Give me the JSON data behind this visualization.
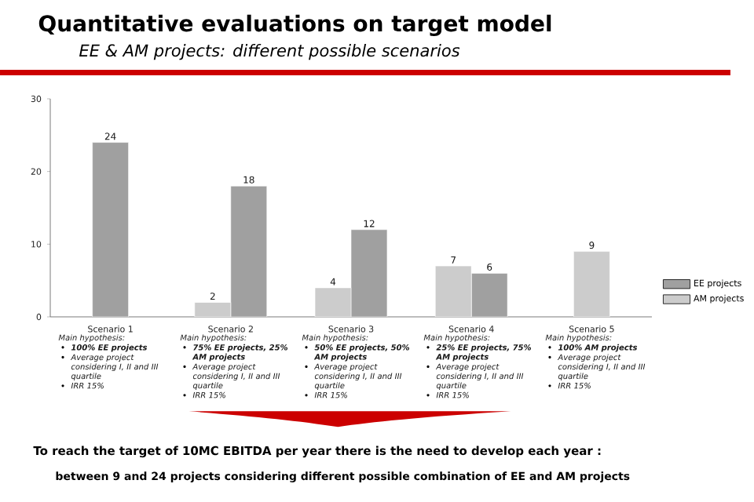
{
  "chart_data": {
    "type": "bar",
    "title": "Quantitative evaluations on target model",
    "subtitle": "EE & AM projects: different possible scenarios",
    "categories": [
      "Scenario 1",
      "Scenario 2",
      "Scenario 3",
      "Scenario 4",
      "Scenario 5"
    ],
    "series": [
      {
        "name": "EE projects",
        "color": "#a0a0a0",
        "values": [
          24,
          18,
          12,
          6,
          null
        ]
      },
      {
        "name": "AM projects",
        "color": "#cccccc",
        "values": [
          null,
          2,
          4,
          7,
          9
        ]
      }
    ],
    "ylim": [
      0,
      30
    ],
    "yticks": [
      0,
      10,
      20,
      30
    ],
    "data_labels": true,
    "legend": "right",
    "annotations": [
      "Main hypothesis:",
      "**100% EE projects**",
      "Average project considering I, II and III quartile",
      "IRR 15%",
      "Main hypothesis:",
      "**75% EE projects, 25% AM projects**",
      "Average project considering I, II and III quartile",
      "IRR 15%",
      "Main hypothesis:",
      "**50% EE projects, 50% AM projects**",
      "Average project considering I, II and III quartile",
      "IRR 15%",
      "Main hypothesis:",
      "**25% EE projects, 75% AM projects**",
      "Average project considering I, II and III quartile",
      "IRR 15%",
      "Main hypothesis:",
      "**100% AM projects**",
      "Average project considering I, II and III quartile",
      "IRR 15%",
      "To reach the target of 10MC EBITDA per year there is the need to develop each year :",
      "between 9 and 24 projects considering different possible combination of EE and AM projects"
    ]
  }
}
